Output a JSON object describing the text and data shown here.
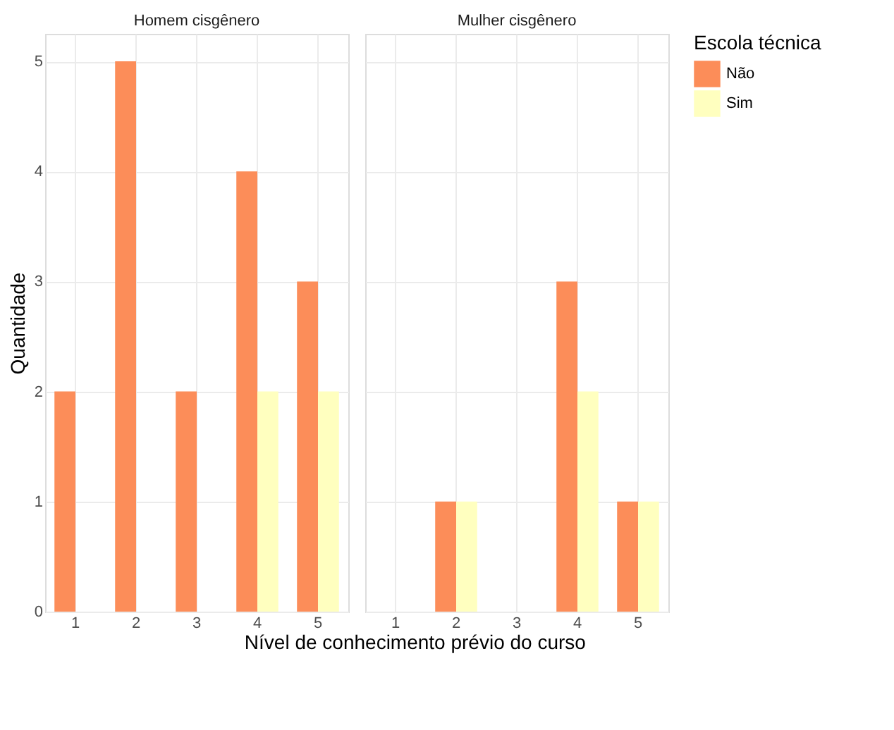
{
  "chart_data": [
    {
      "type": "bar",
      "title": "Homem cisgênero",
      "ylabel": "Quantidade",
      "xlabel": "Nível de conhecimento prévio do curso",
      "categories": [
        "1",
        "2",
        "3",
        "4",
        "5"
      ],
      "ylim": [
        0,
        5.25
      ],
      "yticks": [
        0,
        1,
        2,
        3,
        4,
        5
      ],
      "grid": true,
      "legend": false,
      "series": [
        {
          "color": "#fc8d59",
          "values": [
            2,
            5,
            2,
            4,
            3
          ]
        },
        {
          "color": "#ffffbf",
          "values": [
            null,
            null,
            null,
            2,
            2
          ]
        }
      ]
    },
    {
      "type": "bar",
      "title": "Mulher cisgênero",
      "categories": [
        "1",
        "2",
        "3",
        "4",
        "5"
      ],
      "ylim": [
        0,
        5.25
      ],
      "yticks": [
        0,
        1,
        2,
        3,
        4,
        5
      ],
      "grid": true,
      "legend": "right",
      "legend_title": "Escola técnica",
      "tick_labels": "x",
      "series": [
        {
          "name": "Não",
          "color": "#fc8d59",
          "values": [
            null,
            1,
            null,
            3,
            1
          ]
        },
        {
          "name": "Sim",
          "color": "#ffffbf",
          "values": [
            null,
            1,
            null,
            2,
            1
          ]
        }
      ]
    }
  ]
}
